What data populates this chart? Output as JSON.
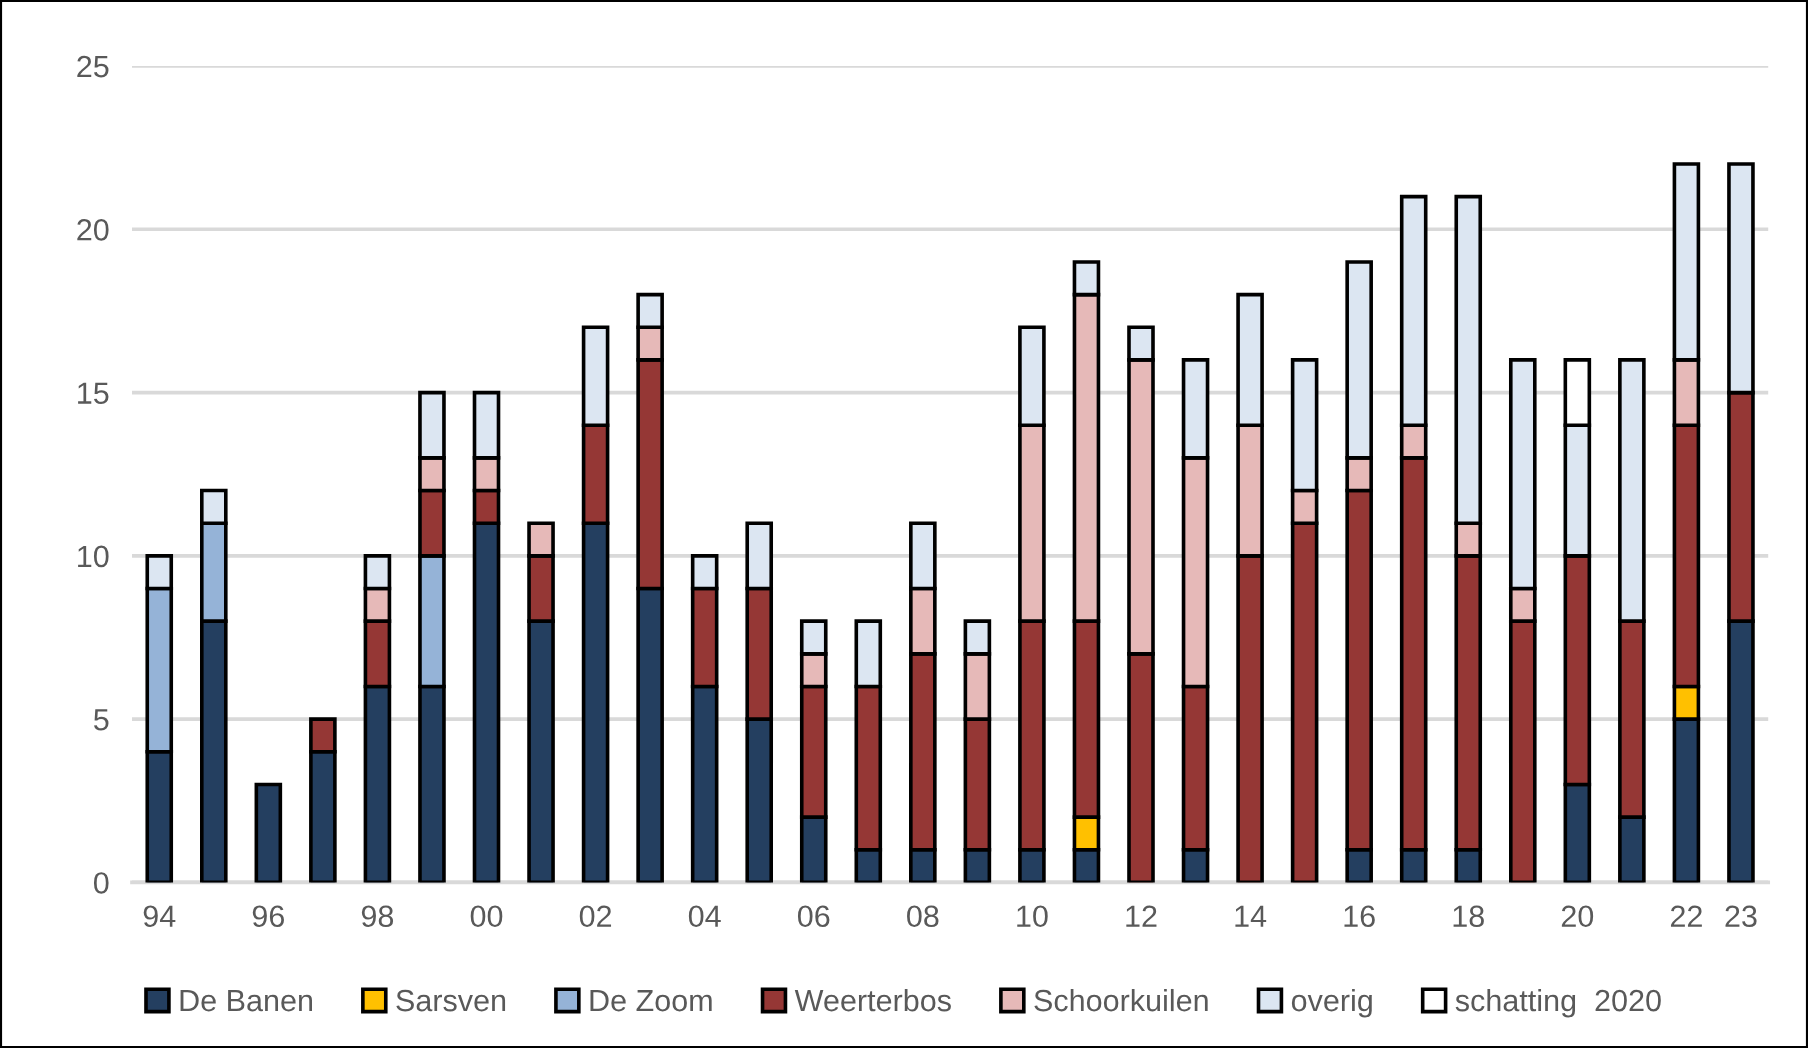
{
  "chart_data": {
    "type": "bar",
    "stacked": true,
    "categories": [
      "94",
      null,
      "96",
      null,
      "98",
      null,
      "00",
      null,
      "02",
      null,
      "04",
      null,
      "06",
      null,
      "08",
      null,
      "10",
      null,
      "12",
      null,
      "14",
      null,
      "16",
      null,
      "18",
      null,
      "20",
      null,
      "22",
      "23"
    ],
    "series": [
      {
        "name": "De Banen",
        "color": "#243f60",
        "values": [
          4,
          8,
          3,
          4,
          6,
          6,
          11,
          8,
          11,
          9,
          6,
          5,
          2,
          1,
          1,
          1,
          1,
          1,
          null,
          1,
          null,
          null,
          1,
          1,
          1,
          null,
          3,
          2,
          5,
          8
        ]
      },
      {
        "name": "Sarsven",
        "color": "#ffc000",
        "values": [
          null,
          null,
          null,
          null,
          null,
          null,
          null,
          null,
          null,
          null,
          null,
          null,
          null,
          null,
          null,
          null,
          null,
          1,
          null,
          null,
          null,
          null,
          null,
          null,
          null,
          null,
          null,
          null,
          1,
          null
        ]
      },
      {
        "name": "De Zoom",
        "color": "#95b3d7",
        "values": [
          5,
          3,
          null,
          null,
          null,
          4,
          null,
          null,
          null,
          null,
          null,
          null,
          null,
          null,
          null,
          null,
          null,
          null,
          null,
          null,
          null,
          null,
          null,
          null,
          null,
          null,
          null,
          null,
          null,
          null
        ]
      },
      {
        "name": "Weerterbos",
        "color": "#953735",
        "values": [
          null,
          null,
          null,
          1,
          2,
          2,
          1,
          2,
          3,
          7,
          3,
          4,
          4,
          5,
          6,
          4,
          7,
          6,
          7,
          5,
          10,
          11,
          11,
          12,
          9,
          8,
          7,
          6,
          8,
          7
        ]
      },
      {
        "name": "Schoorkuilen",
        "color": "#e6b9b8",
        "values": [
          null,
          null,
          null,
          null,
          1,
          1,
          1,
          1,
          null,
          1,
          null,
          null,
          1,
          null,
          2,
          2,
          6,
          10,
          9,
          7,
          4,
          1,
          1,
          1,
          1,
          1,
          null,
          null,
          2,
          null
        ]
      },
      {
        "name": "overig",
        "color": "#dce6f2",
        "values": [
          1,
          1,
          null,
          null,
          1,
          2,
          2,
          null,
          3,
          1,
          1,
          2,
          1,
          2,
          2,
          1,
          3,
          1,
          1,
          3,
          4,
          4,
          6,
          7,
          10,
          7,
          4,
          8,
          6,
          7
        ]
      },
      {
        "name": "schatting  2020",
        "color": "#ffffff",
        "values": [
          null,
          null,
          null,
          null,
          null,
          null,
          null,
          null,
          null,
          null,
          null,
          null,
          null,
          null,
          null,
          null,
          null,
          null,
          null,
          null,
          null,
          null,
          null,
          null,
          null,
          null,
          2,
          null,
          null,
          null
        ]
      }
    ],
    "ylim": [
      0,
      25
    ],
    "yticks": [
      0,
      5,
      10,
      15,
      20,
      25
    ],
    "grid": "y",
    "legend": "bottom"
  }
}
